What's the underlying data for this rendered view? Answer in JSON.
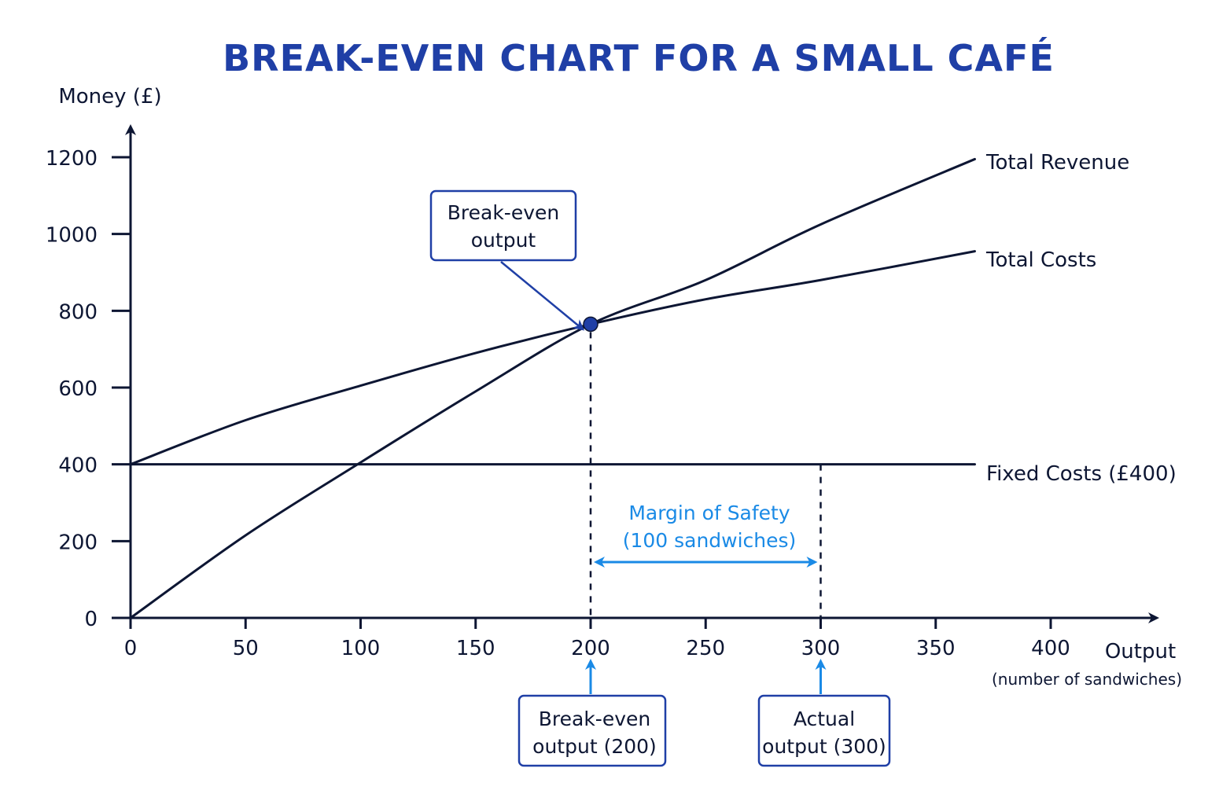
{
  "colors": {
    "title": "#1f3fa6",
    "axis": "#0d1633",
    "line": "#0d1633",
    "accent": "#1a8ae6",
    "callout_border": "#1f3fa6",
    "point": "#1f3fa6"
  },
  "chart_data": {
    "type": "line",
    "title": "BREAK-EVEN CHART FOR A SMALL CAFÉ",
    "ylabel": "Money (£)",
    "xlabel": "Output",
    "xlabel_sub": "(number of sandwiches)",
    "xlim": [
      0,
      400
    ],
    "ylim": [
      0,
      1200
    ],
    "x_ticks": [
      0,
      50,
      100,
      150,
      200,
      250,
      300,
      350,
      400
    ],
    "y_ticks": [
      0,
      200,
      400,
      600,
      800,
      1000,
      1200
    ],
    "grid": false,
    "series": [
      {
        "name": "Total Revenue",
        "x": [
          0,
          50,
          100,
          150,
          200,
          250,
          300,
          367
        ],
        "y": [
          0,
          215,
          405,
          590,
          765,
          880,
          1025,
          1195
        ]
      },
      {
        "name": "Total Costs",
        "x": [
          0,
          50,
          100,
          150,
          200,
          250,
          300,
          367
        ],
        "y": [
          400,
          515,
          605,
          690,
          765,
          830,
          880,
          955
        ]
      },
      {
        "name": "Fixed Costs (£400)",
        "x": [
          0,
          367
        ],
        "y": [
          400,
          400
        ]
      }
    ],
    "break_even": {
      "x": 200,
      "y": 765
    },
    "actual_output": 300,
    "annotations": {
      "break_even_callout": [
        "Break-even",
        "output"
      ],
      "margin_of_safety": [
        "Margin of Safety",
        "(100 sandwiches)"
      ],
      "break_even_box": [
        "Break-even",
        "output (200)"
      ],
      "actual_box": [
        "Actual",
        "output (300)"
      ]
    }
  }
}
